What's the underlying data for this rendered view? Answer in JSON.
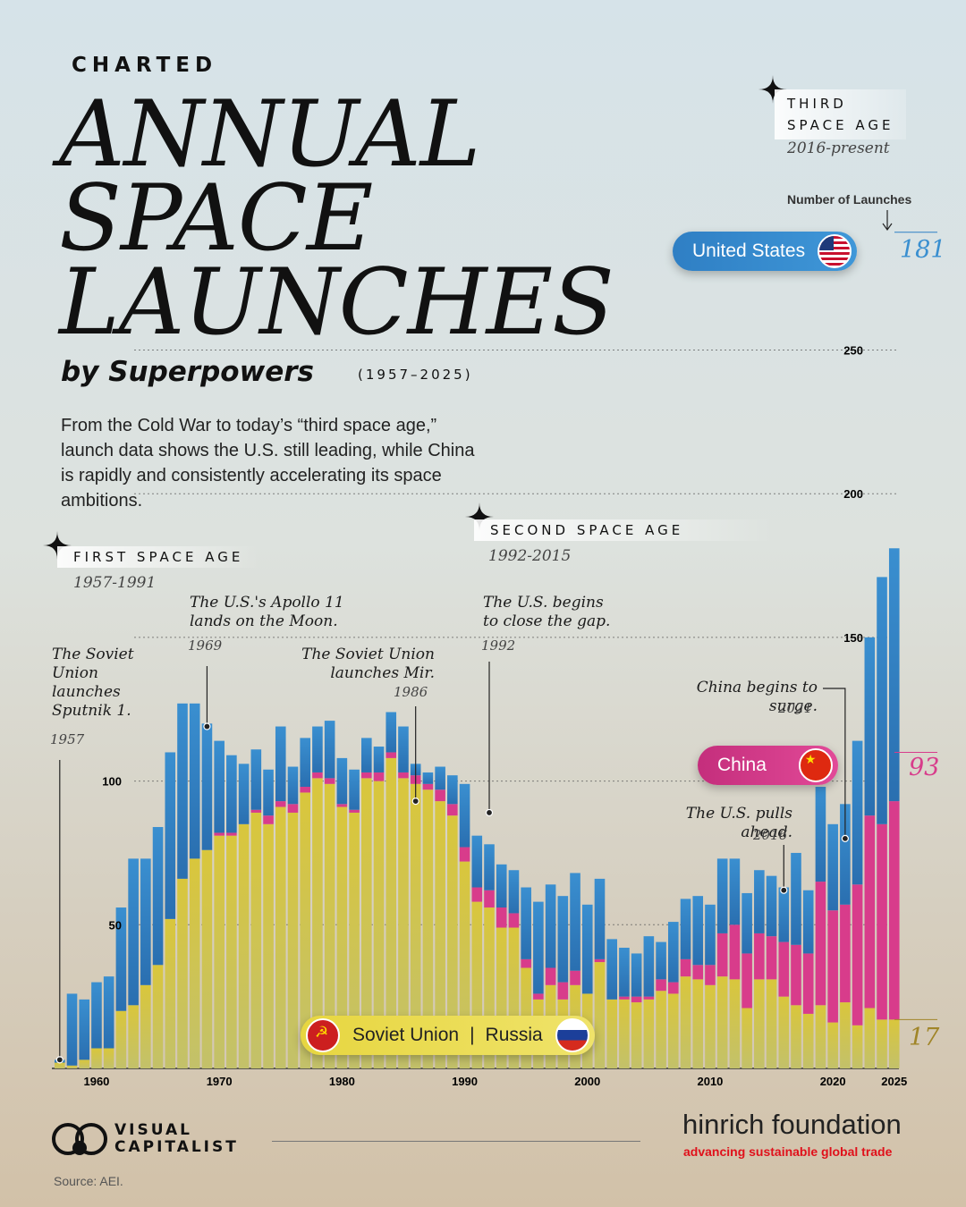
{
  "header": {
    "kicker": "CHARTED",
    "title_lines": [
      "ANNUAL",
      "SPACE",
      "LAUNCHES"
    ],
    "subtitle": "by Superpowers",
    "period": "(1957–2025)",
    "intro": "From the Cold War to today’s “third space age,” launch data shows the U.S. still leading, while China is rapidly and consistently accelerating its space ambitions."
  },
  "ages": [
    {
      "label": "FIRST SPACE AGE",
      "years": "1957-1991"
    },
    {
      "label": "SECOND SPACE AGE",
      "years": "1992-2015"
    },
    {
      "label_lines": [
        "THIRD",
        "SPACE AGE"
      ],
      "years": "2016-present"
    }
  ],
  "annotations": [
    {
      "text": "The Soviet Union launches Sputnik 1.",
      "year": "1957"
    },
    {
      "text": "The U.S.'s Apollo 11 lands on the Moon.",
      "year": "1969"
    },
    {
      "text": "The Soviet Union launches Mir.",
      "year": "1986"
    },
    {
      "text": "The U.S. begins to close the gap.",
      "year": "1992"
    },
    {
      "text": "The U.S. pulls ahead.",
      "year": "2016"
    },
    {
      "text": "China begins to surge.",
      "year": "2021"
    }
  ],
  "legend": {
    "us": "United States",
    "china": "China",
    "ussr": "Soviet Union",
    "russia": "Russia",
    "number_of_launches": "Number of Launches"
  },
  "end_values": {
    "us": "181",
    "china": "93",
    "russia": "17"
  },
  "colors": {
    "us": "#2f7fc4",
    "china": "#d83c8b",
    "ussr": "#cdbf3f",
    "axis": "#333333"
  },
  "icons": {
    "age_marker": "sparkle-icon",
    "brand": "visual-capitalist-logo",
    "ussr_flag": "hammer-sickle-icon"
  },
  "footer": {
    "brand_line1": "VISUAL",
    "brand_line2": "CAPITALIST",
    "partner_name": "hinrich foundation",
    "partner_tagline": "advancing sustainable global trade",
    "source": "Source: AEI."
  },
  "chart_data": {
    "type": "bar",
    "stacked": true,
    "x_start": 1957,
    "x_end": 2025,
    "ylim": [
      0,
      291
    ],
    "yticks": [
      50,
      100,
      150,
      200,
      250
    ],
    "xticks": [
      1960,
      1970,
      1980,
      1990,
      2000,
      2010,
      2020,
      2025
    ],
    "gridlines": "dotted at 50, 100, 150, 200, 250",
    "series": [
      {
        "name": "Soviet Union | Russia",
        "values": [
          2,
          1,
          3,
          7,
          7,
          20,
          22,
          29,
          36,
          52,
          66,
          73,
          76,
          81,
          81,
          85,
          89,
          85,
          91,
          89,
          96,
          101,
          99,
          91,
          89,
          101,
          100,
          108,
          101,
          99,
          97,
          93,
          88,
          72,
          58,
          56,
          49,
          49,
          35,
          24,
          29,
          24,
          29,
          26,
          37,
          24,
          24,
          23,
          24,
          27,
          26,
          32,
          31,
          29,
          32,
          31,
          21,
          31,
          31,
          25,
          22,
          19,
          22,
          16,
          23,
          15,
          21,
          17,
          17
        ]
      },
      {
        "name": "China",
        "values": [
          0,
          0,
          0,
          0,
          0,
          0,
          0,
          0,
          0,
          0,
          0,
          0,
          0,
          1,
          1,
          0,
          1,
          3,
          2,
          3,
          2,
          2,
          2,
          1,
          1,
          2,
          3,
          2,
          2,
          3,
          2,
          4,
          4,
          5,
          5,
          6,
          7,
          5,
          3,
          2,
          6,
          6,
          5,
          0,
          1,
          0,
          1,
          2,
          1,
          4,
          4,
          6,
          5,
          7,
          15,
          19,
          19,
          16,
          15,
          19,
          21,
          21,
          43,
          39,
          34,
          49,
          67,
          68,
          76
        ]
      },
      {
        "name": "United States",
        "values": [
          1,
          25,
          21,
          23,
          25,
          36,
          51,
          44,
          48,
          58,
          61,
          54,
          44,
          32,
          27,
          21,
          21,
          16,
          26,
          13,
          17,
          16,
          20,
          16,
          14,
          12,
          9,
          14,
          16,
          4,
          4,
          8,
          10,
          22,
          18,
          16,
          15,
          15,
          25,
          32,
          29,
          30,
          34,
          31,
          28,
          21,
          17,
          15,
          21,
          13,
          21,
          21,
          24,
          21,
          26,
          23,
          21,
          22,
          21,
          19,
          32,
          22,
          33,
          30,
          35,
          50,
          62,
          86,
          88
        ]
      }
    ]
  }
}
